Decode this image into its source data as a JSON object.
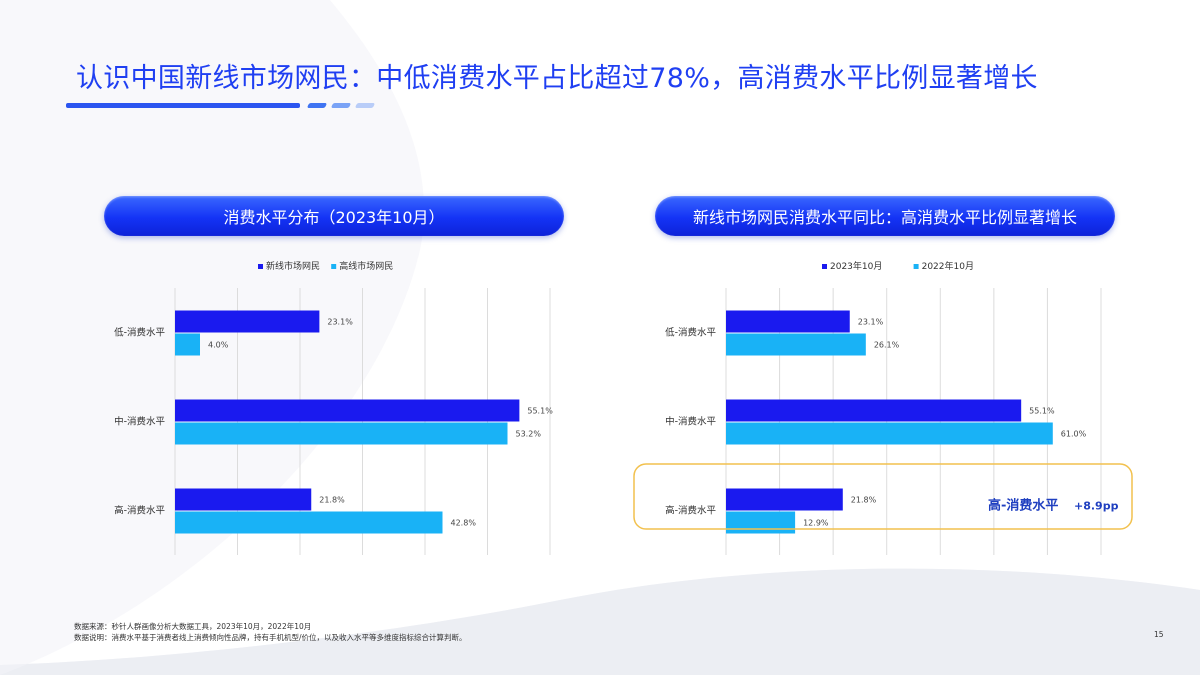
{
  "page": {
    "title": "认识中国新线市场网民：中低消费水平占比超过78%，高消费水平比例显著增长",
    "page_number": "15"
  },
  "footnotes": {
    "source": "数据来源：秒针人群画像分析大数据工具，2023年10月，2022年10月",
    "note": "数据说明：消费水平基于消费者线上消费倾向性品牌，持有手机机型/价位，以及收入水平等多维度指标综合计算判断。"
  },
  "colors": {
    "series_dark": "#1a1aef",
    "series_light": "#19b2f6",
    "highlight_border": "#f2c14e",
    "grid": "#dcdcdc",
    "highlight_text": "#1f3fc0"
  },
  "chart_data": [
    {
      "type": "bar",
      "orientation": "horizontal",
      "title": "消费水平分布（2023年10月）",
      "categories": [
        "低-消费水平",
        "中-消费水平",
        "高-消费水平"
      ],
      "series": [
        {
          "name": "新线市场网民",
          "values": [
            23.1,
            55.1,
            21.8
          ],
          "labels": [
            "23.1%",
            "55.1%",
            "21.8%"
          ]
        },
        {
          "name": "高线市场网民",
          "values": [
            4.0,
            53.2,
            42.8
          ],
          "labels": [
            "4.0%",
            "53.2%",
            "42.8%"
          ]
        }
      ],
      "xlim": [
        0,
        60
      ],
      "grid": true,
      "legend": "top"
    },
    {
      "type": "bar",
      "orientation": "horizontal",
      "title": "新线市场网民消费水平同比：高消费水平比例显著增长",
      "categories": [
        "低-消费水平",
        "中-消费水平",
        "高-消费水平"
      ],
      "series": [
        {
          "name": "2023年10月",
          "values": [
            23.1,
            55.1,
            21.8
          ],
          "labels": [
            "23.1%",
            "55.1%",
            "21.8%"
          ]
        },
        {
          "name": "2022年10月",
          "values": [
            26.1,
            61.0,
            12.9
          ],
          "labels": [
            "26.1%",
            "61.0%",
            "12.9%"
          ]
        }
      ],
      "xlim": [
        0,
        70
      ],
      "grid": true,
      "legend": "top",
      "highlight": {
        "category_index": 2,
        "label": "高-消费水平",
        "delta": "+8.9pp"
      }
    }
  ]
}
